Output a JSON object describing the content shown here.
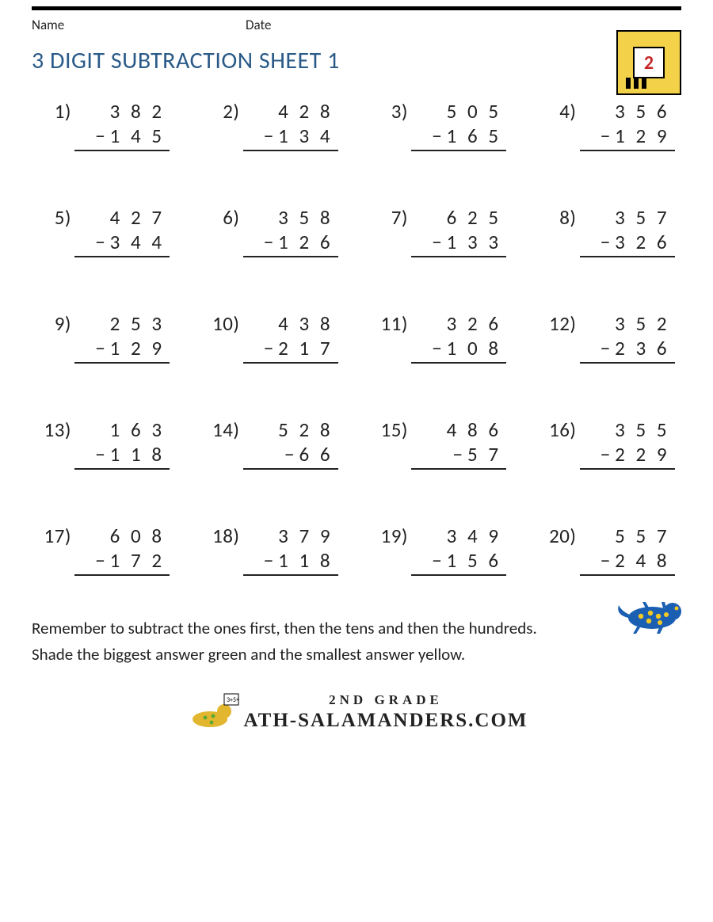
{
  "header": {
    "name_label": "Name",
    "date_label": "Date"
  },
  "title": "3 DIGIT SUBTRACTION SHEET 1",
  "logo": {
    "grade_number": "2",
    "background_color": "#f3d24a",
    "border_color": "#000000",
    "number_color": "#c62828"
  },
  "colors": {
    "title_color": "#2a5a88",
    "text_color": "#222222",
    "rule_color": "#222222",
    "page_background": "#ffffff"
  },
  "typography": {
    "title_fontsize": 30,
    "problem_fontsize": 25,
    "instruction_fontsize": 21,
    "header_fontsize": 17,
    "digit_letter_spacing": 4
  },
  "layout": {
    "columns": 4,
    "rows": 5,
    "column_gap": 30,
    "row_gap": 68
  },
  "operator": "−",
  "problems": [
    {
      "n": "1)",
      "a": "3 8 2",
      "b": "1 4 5"
    },
    {
      "n": "2)",
      "a": "4 2 8",
      "b": "1 3 4"
    },
    {
      "n": "3)",
      "a": "5 0 5",
      "b": "1 6 5"
    },
    {
      "n": "4)",
      "a": "3 5 6",
      "b": "1 2 9"
    },
    {
      "n": "5)",
      "a": "4 2 7",
      "b": "3 4 4"
    },
    {
      "n": "6)",
      "a": "3 5 8",
      "b": "1 2 6"
    },
    {
      "n": "7)",
      "a": "6 2 5",
      "b": "1 3 3"
    },
    {
      "n": "8)",
      "a": "3 5 7",
      "b": "3 2 6"
    },
    {
      "n": "9)",
      "a": "2 5 3",
      "b": "1 2 9"
    },
    {
      "n": "10)",
      "a": "4 3 8",
      "b": "2 1 7"
    },
    {
      "n": "11)",
      "a": "3 2 6",
      "b": "1 0 8"
    },
    {
      "n": "12)",
      "a": "3 5 2",
      "b": "2 3 6"
    },
    {
      "n": "13)",
      "a": "1 6 3",
      "b": "1 1 8"
    },
    {
      "n": "14)",
      "a": "5 2 8",
      "b": "6 6"
    },
    {
      "n": "15)",
      "a": "4 8 6",
      "b": "5 7"
    },
    {
      "n": "16)",
      "a": "3 5 5",
      "b": "2 2 9"
    },
    {
      "n": "17)",
      "a": "6 0 8",
      "b": "1 7 2"
    },
    {
      "n": "18)",
      "a": "3 7 9",
      "b": "1 1 8"
    },
    {
      "n": "19)",
      "a": "3 4 9",
      "b": "1 5 6"
    },
    {
      "n": "20)",
      "a": "5 5 7",
      "b": "2 4 8"
    }
  ],
  "instructions": {
    "line1": "Remember to subtract the ones first, then the tens and then the hundreds.",
    "line2": "Shade the biggest answer green and the smallest answer yellow."
  },
  "footer": {
    "grade_text": "2ND GRADE",
    "site_text": "ATH-SALAMANDERS.COM"
  },
  "salamander": {
    "body_color": "#1b5fb3",
    "spot_color": "#f5c924"
  }
}
